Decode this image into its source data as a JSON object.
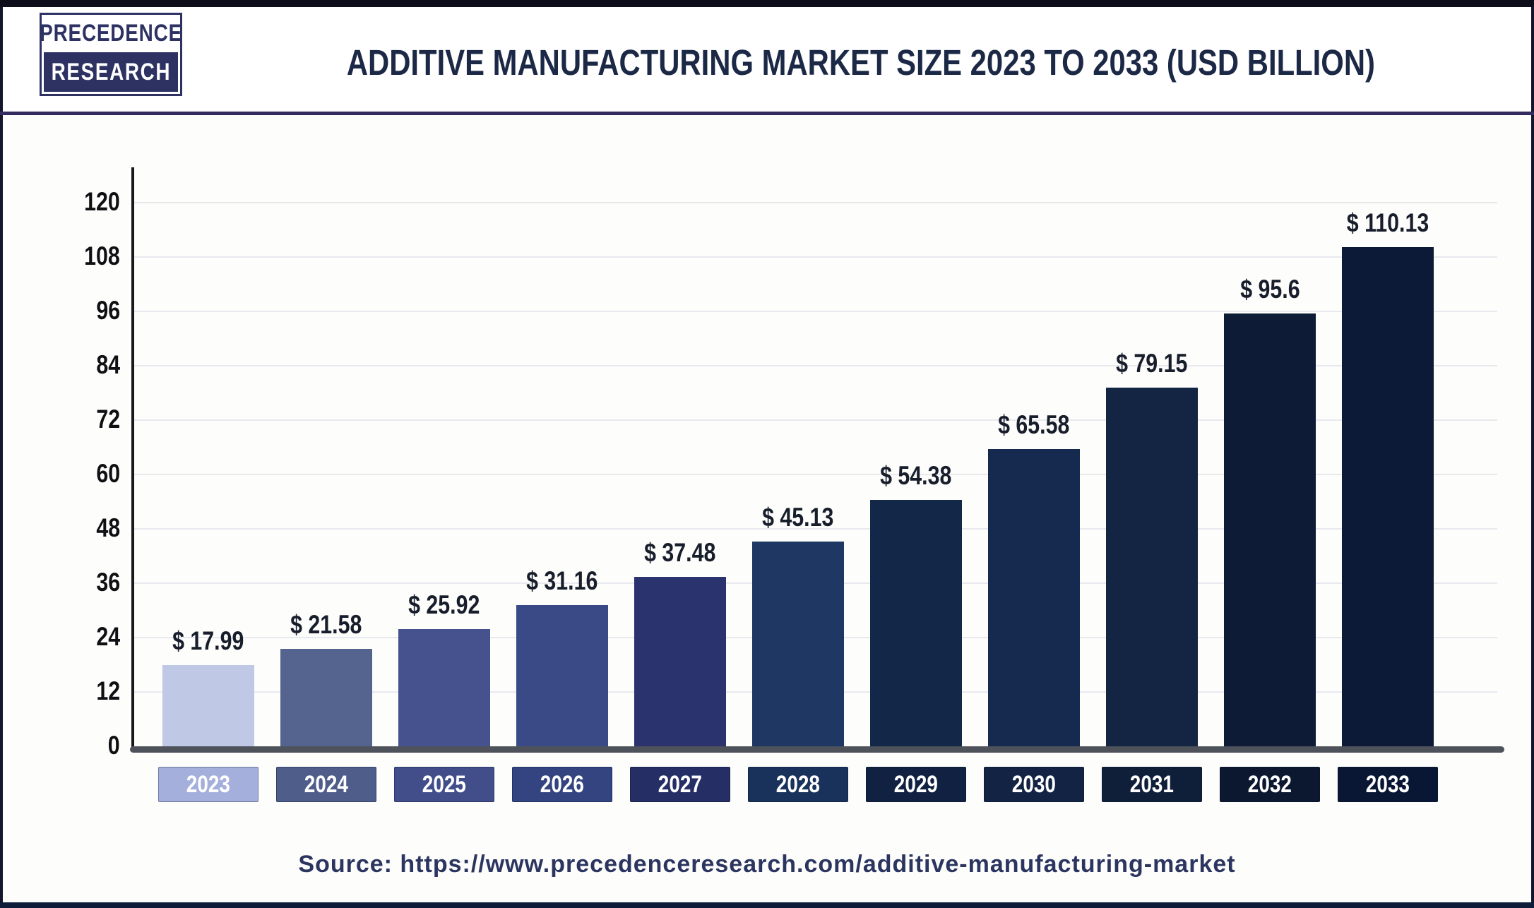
{
  "header": {
    "logo": {
      "line1": "PRECEDENCE",
      "line2": "RESEARCH"
    },
    "title": "ADDITIVE MANUFACTURING MARKET SIZE 2023 TO 2033 (USD BILLION)"
  },
  "chart_data": {
    "type": "bar",
    "title": "Additive Manufacturing Market Size 2023 to 2033 (USD Billion)",
    "categories": [
      "2023",
      "2024",
      "2025",
      "2026",
      "2027",
      "2028",
      "2029",
      "2030",
      "2031",
      "2032",
      "2033"
    ],
    "values": [
      17.99,
      21.58,
      25.92,
      31.16,
      37.48,
      45.13,
      54.38,
      65.58,
      79.15,
      95.6,
      110.13
    ],
    "value_labels": [
      "$ 17.99",
      "$ 21.58",
      "$ 25.92",
      "$ 31.16",
      "$ 37.48",
      "$ 45.13",
      "$ 54.38",
      "$ 65.58",
      "$ 79.15",
      "$ 95.6",
      "$ 110.13"
    ],
    "bar_colors": [
      "#bfc8e5",
      "#55638f",
      "#46528d",
      "#3a4a86",
      "#2b336f",
      "#1e3763",
      "#132749",
      "#16294e",
      "#132542",
      "#0d1b36",
      "#0c1a38"
    ],
    "box_colors": [
      "#a4afdc",
      "#4f5d8a",
      "#414e8a",
      "#344480",
      "#262e66",
      "#19325b",
      "#112141",
      "#122343",
      "#0f1f3a",
      "#0b1830",
      "#0a1734"
    ],
    "xlabel": "",
    "ylabel": "",
    "ylim": [
      0,
      120
    ],
    "yticks": [
      0,
      12,
      24,
      36,
      48,
      60,
      72,
      84,
      96,
      108,
      120
    ],
    "grid": "horizontal",
    "legend": "none"
  },
  "source": {
    "text": "Source: https://www.precedenceresearch.com/additive-manufacturing-market"
  },
  "colors": {
    "background": "#fdfdfb",
    "frame_top": "#0d0e1a",
    "frame_side": "#14162e",
    "frame_bottom": "#0e1c3a",
    "divider": "#322d5e",
    "logo_navy": "#2d3263",
    "title": "#1c2946",
    "axis": "#17171c",
    "baseline": "#4e525a",
    "grid": "#e8e9ef",
    "tick_label": "#101014",
    "value_label": "#171d2b",
    "source": "#2b3560"
  }
}
